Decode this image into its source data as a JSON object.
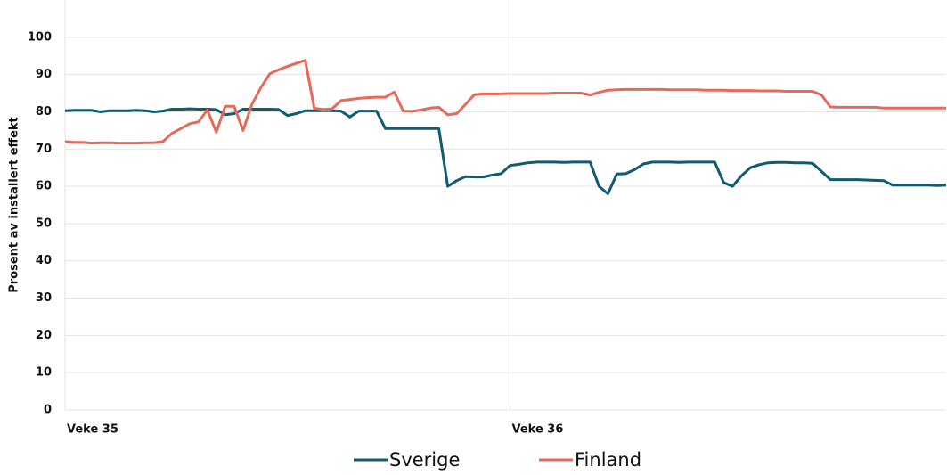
{
  "chart_data": {
    "type": "line",
    "y_label": "Prosent av installert effekt",
    "categories": [
      "Veke 35",
      null,
      null,
      null,
      null,
      null,
      null,
      null,
      null,
      null,
      null,
      null,
      null,
      null,
      null,
      null,
      null,
      null,
      null,
      null,
      null,
      null,
      null,
      null,
      null,
      null,
      null,
      null,
      null,
      null,
      null,
      null,
      null,
      null,
      null,
      null,
      null,
      null,
      null,
      null,
      null,
      null,
      null,
      null,
      null,
      null,
      null,
      null,
      null,
      null,
      "Veke 36",
      null,
      null,
      null,
      null,
      null,
      null,
      null,
      null,
      null,
      null,
      null,
      null,
      null,
      null,
      null,
      null,
      null,
      null,
      null,
      null,
      null,
      null,
      null,
      null,
      null,
      null,
      null,
      null,
      null,
      null,
      null,
      null,
      null,
      null,
      null,
      null,
      null,
      null,
      null,
      null,
      null,
      null,
      null,
      null,
      null,
      null,
      null,
      null,
      null
    ],
    "series": [
      {
        "name": "Sverige",
        "color": "#0d5c72",
        "values": [
          80.3,
          80.4,
          80.4,
          80.4,
          80,
          80.3,
          80.3,
          80.3,
          80.4,
          80.3,
          80,
          80.2,
          80.7,
          80.7,
          80.8,
          80.7,
          80.7,
          80.6,
          79.2,
          79.5,
          80.7,
          80.7,
          80.7,
          80.7,
          80.6,
          79,
          79.5,
          80.3,
          80.3,
          80.3,
          80.3,
          80.2,
          78.6,
          80.2,
          80.2,
          80.2,
          75.5,
          75.5,
          75.5,
          75.5,
          75.5,
          75.5,
          75.5,
          60,
          61.5,
          62.6,
          62.5,
          62.5,
          63,
          63.4,
          65.6,
          65.9,
          66.3,
          66.5,
          66.5,
          66.5,
          66.4,
          66.5,
          66.5,
          66.5,
          60,
          58,
          63.3,
          63.4,
          64.5,
          66,
          66.5,
          66.5,
          66.5,
          66.4,
          66.5,
          66.5,
          66.5,
          66.5,
          61,
          60,
          62.8,
          65,
          65.8,
          66.3,
          66.4,
          66.4,
          66.3,
          66.3,
          66.2,
          64,
          61.8,
          61.8,
          61.8,
          61.8,
          61.7,
          61.6,
          61.5,
          60.3,
          60.3,
          60.3,
          60.3,
          60.3,
          60.2,
          60.3
        ]
      },
      {
        "name": "Finland",
        "color": "#e8695a",
        "values": [
          72,
          71.8,
          71.8,
          71.6,
          71.7,
          71.7,
          71.6,
          71.6,
          71.6,
          71.7,
          71.7,
          72,
          74.2,
          75.5,
          76.8,
          77.3,
          80.5,
          74.5,
          81.5,
          81.5,
          75,
          82,
          86.5,
          90.2,
          91.3,
          92.2,
          93,
          93.8,
          81,
          80.6,
          80.8,
          83,
          83.3,
          83.6,
          83.8,
          83.9,
          83.9,
          85.3,
          80.2,
          80.1,
          80.5,
          81,
          81.2,
          79.2,
          79.5,
          82,
          84.6,
          84.8,
          84.8,
          84.8,
          84.9,
          84.9,
          84.9,
          84.9,
          84.9,
          85,
          85,
          85,
          85,
          84.5,
          85.2,
          85.8,
          85.9,
          86,
          86,
          86,
          86,
          86,
          85.9,
          85.9,
          85.9,
          85.9,
          85.8,
          85.8,
          85.8,
          85.7,
          85.7,
          85.7,
          85.6,
          85.6,
          85.6,
          85.5,
          85.5,
          85.5,
          85.5,
          84.5,
          81.3,
          81.2,
          81.2,
          81.2,
          81.2,
          81.2,
          81,
          81,
          81,
          81,
          81,
          81,
          81,
          81
        ]
      }
    ],
    "ylim": [
      0,
      110
    ],
    "yticks": [
      0,
      10,
      20,
      30,
      40,
      50,
      60,
      70,
      80,
      90,
      100
    ],
    "grid": true,
    "legend": "bottom"
  }
}
